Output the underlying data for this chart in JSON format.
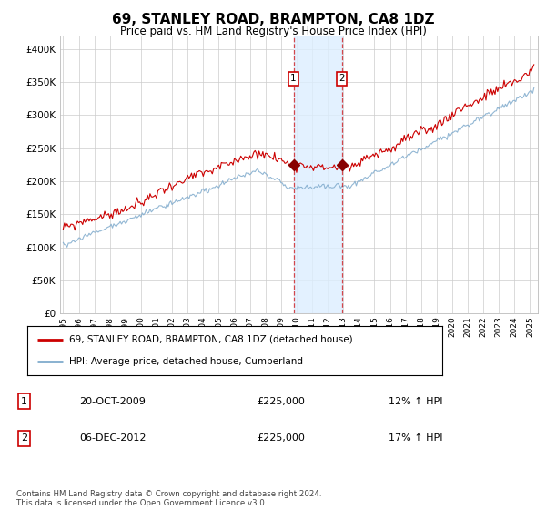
{
  "title": "69, STANLEY ROAD, BRAMPTON, CA8 1DZ",
  "subtitle": "Price paid vs. HM Land Registry's House Price Index (HPI)",
  "ylabel_ticks": [
    "£0",
    "£50K",
    "£100K",
    "£150K",
    "£200K",
    "£250K",
    "£300K",
    "£350K",
    "£400K"
  ],
  "ytick_values": [
    0,
    50000,
    100000,
    150000,
    200000,
    250000,
    300000,
    350000,
    400000
  ],
  "ylim": [
    0,
    420000
  ],
  "xlim_start": 1994.8,
  "xlim_end": 2025.5,
  "red_line_color": "#cc0000",
  "blue_line_color": "#7faacc",
  "shade_color": "#ddeeff",
  "vline_color": "#cc0000",
  "marker1_x": 2009.8,
  "marker2_x": 2012.9,
  "legend_label1": "69, STANLEY ROAD, BRAMPTON, CA8 1DZ (detached house)",
  "legend_label2": "HPI: Average price, detached house, Cumberland",
  "transaction1_date": "20-OCT-2009",
  "transaction1_price": "£225,000",
  "transaction1_hpi": "12% ↑ HPI",
  "transaction2_date": "06-DEC-2012",
  "transaction2_price": "£225,000",
  "transaction2_hpi": "17% ↑ HPI",
  "footer": "Contains HM Land Registry data © Crown copyright and database right 2024.\nThis data is licensed under the Open Government Licence v3.0.",
  "background_color": "#ffffff",
  "grid_color": "#cccccc"
}
